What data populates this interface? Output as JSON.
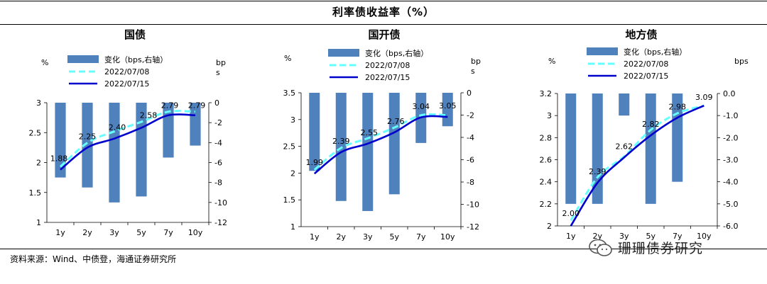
{
  "title": "利率债收益率（%）",
  "source": "资料来源：Wind、中债登，海通证券研究所",
  "watermark": "珊珊债券研究",
  "colors": {
    "bar": "#4f81bd",
    "line_old": "#66ffff",
    "line_new": "#0000cc"
  },
  "legend": {
    "bar": "变化（bps,右轴）",
    "old": "2022/07/08",
    "new": "2022/07/15"
  },
  "chart_data": [
    {
      "type": "bar+line",
      "title": "国债",
      "categories": [
        "1y",
        "2y",
        "3y",
        "5y",
        "7y",
        "10y"
      ],
      "left_unit": "%",
      "right_unit": "bp\ns",
      "ylim": [
        1,
        3
      ],
      "yticks": [
        "1",
        "1.5",
        "2",
        "2.5",
        "3"
      ],
      "y2lim": [
        -12,
        0
      ],
      "y2ticks": [
        "0",
        "-2",
        "-4",
        "-6",
        "-8",
        "-10",
        "-12"
      ],
      "series": [
        {
          "name": "变化（bps,右轴）",
          "axis": "right",
          "kind": "bar",
          "values": [
            -7.5,
            -8.5,
            -10.0,
            -9.4,
            -5.5,
            -4.3
          ]
        },
        {
          "name": "2022/07/08",
          "axis": "left",
          "kind": "dashed-line",
          "values": [
            1.93,
            2.33,
            2.52,
            2.68,
            2.85,
            2.85
          ]
        },
        {
          "name": "2022/07/15",
          "axis": "left",
          "kind": "line",
          "values": [
            1.88,
            2.25,
            2.4,
            2.58,
            2.79,
            2.79
          ]
        }
      ],
      "data_labels": [
        "1.88",
        "2.25",
        "2.40",
        "2.58",
        "2.79",
        "2.79"
      ]
    },
    {
      "type": "bar+line",
      "title": "国开债",
      "categories": [
        "1y",
        "2y",
        "3y",
        "5y",
        "7y",
        "10y"
      ],
      "left_unit": "%",
      "right_unit": "bp\ns",
      "ylim": [
        1,
        3.5
      ],
      "yticks": [
        "1",
        "1.5",
        "2",
        "2.5",
        "3",
        "3.5"
      ],
      "y2lim": [
        -12,
        0
      ],
      "y2ticks": [
        "0",
        "-2",
        "-4",
        "-6",
        "-8",
        "-10",
        "-12"
      ],
      "series": [
        {
          "name": "变化（bps,右轴）",
          "axis": "right",
          "kind": "bar",
          "values": [
            -7.0,
            -9.7,
            -10.6,
            -9.1,
            -4.5,
            -3.0
          ]
        },
        {
          "name": "2022/07/08",
          "axis": "left",
          "kind": "dashed-line",
          "values": [
            2.06,
            2.47,
            2.65,
            2.85,
            3.08,
            3.08
          ]
        },
        {
          "name": "2022/07/15",
          "axis": "left",
          "kind": "line",
          "values": [
            1.99,
            2.39,
            2.55,
            2.76,
            3.04,
            3.05
          ]
        }
      ],
      "data_labels": [
        "1.99",
        "2.39",
        "2.55",
        "2.76",
        "3.04",
        "3.05"
      ]
    },
    {
      "type": "bar+line",
      "title": "地方债",
      "categories": [
        "1y",
        "2y",
        "3y",
        "5y",
        "7y",
        "10y"
      ],
      "left_unit": "%",
      "right_unit": "bps",
      "ylim": [
        2,
        3.2
      ],
      "yticks": [
        "2",
        "2.2",
        "2.4",
        "2.6",
        "2.8",
        "3",
        "3.2"
      ],
      "y2lim": [
        -6,
        0
      ],
      "y2ticks": [
        "0.0",
        "-1.0",
        "-2.0",
        "-3.0",
        "-4.0",
        "-5.0",
        "-6.0"
      ],
      "series": [
        {
          "name": "变化（bps,右轴）",
          "axis": "right",
          "kind": "bar",
          "values": [
            -5.0,
            -5.0,
            -1.0,
            -5.0,
            -4.0,
            0
          ]
        },
        {
          "name": "2022/07/08",
          "axis": "left",
          "kind": "dashed-line",
          "values": [
            2.05,
            2.44,
            2.63,
            2.87,
            3.02,
            3.09
          ]
        },
        {
          "name": "2022/07/15",
          "axis": "left",
          "kind": "line",
          "values": [
            2.0,
            2.39,
            2.62,
            2.82,
            2.98,
            3.09
          ]
        }
      ],
      "data_labels": [
        "2.00",
        "2.39",
        "2.62",
        "2.82",
        "2.98",
        "3.09"
      ]
    }
  ]
}
